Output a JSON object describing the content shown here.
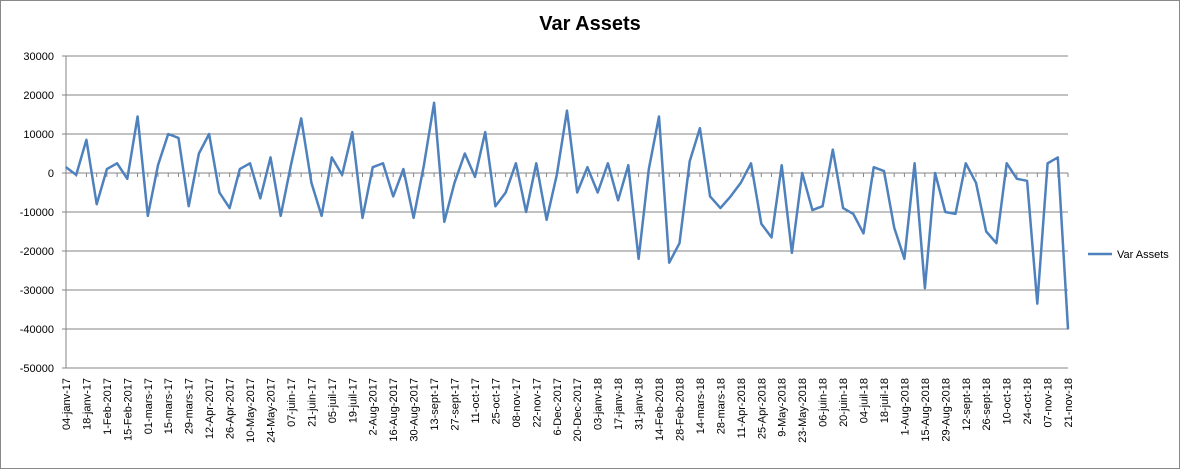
{
  "chart_data": {
    "type": "line",
    "title": "Var Assets",
    "xlabel": "",
    "ylabel": "",
    "ylim": [
      -50000,
      30000
    ],
    "ytick_step": 10000,
    "grid": "horizontal",
    "legend": "right",
    "colors": {
      "series": "#4f81bd",
      "grid": "#868686",
      "axis": "#868686"
    },
    "x_tick_labels": [
      "04-janv-17",
      "18-janv-17",
      "1-Feb-2017",
      "15-Feb-2017",
      "01-mars-17",
      "15-mars-17",
      "29-mars-17",
      "12-Apr-2017",
      "26-Apr-2017",
      "10-May-2017",
      "24-May-2017",
      "07-juin-17",
      "21-juin-17",
      "05-juil-17",
      "19-juil-17",
      "2-Aug-2017",
      "16-Aug-2017",
      "30-Aug-2017",
      "13-sept-17",
      "27-sept-17",
      "11-oct-17",
      "25-oct-17",
      "08-nov-17",
      "22-nov-17",
      "6-Dec-2017",
      "20-Dec-2017",
      "03-janv-18",
      "17-janv-18",
      "31-janv-18",
      "14-Feb-2018",
      "28-Feb-2018",
      "14-mars-18",
      "28-mars-18",
      "11-Apr-2018",
      "25-Apr-2018",
      "9-May-2018",
      "23-May-2018",
      "06-juin-18",
      "20-juin-18",
      "04-juil-18",
      "18-juil-18",
      "1-Aug-2018",
      "15-Aug-2018",
      "29-Aug-2018",
      "12-sept-18",
      "26-sept-18",
      "10-oct-18",
      "24-oct-18",
      "07-nov-18",
      "21-nov-18"
    ],
    "series": [
      {
        "name": "Var Assets",
        "values": [
          1500,
          -500,
          8500,
          -8000,
          1000,
          2500,
          -1500,
          14500,
          -11000,
          2000,
          10000,
          9000,
          -8500,
          5000,
          10000,
          -5000,
          -9000,
          1000,
          2500,
          -6500,
          4000,
          -11000,
          2000,
          14000,
          -2500,
          -11000,
          4000,
          -500,
          10500,
          -11500,
          1500,
          2500,
          -6000,
          1000,
          -11500,
          2000,
          18000,
          -12500,
          -2500,
          5000,
          -1000,
          10500,
          -8500,
          -5000,
          2500,
          -10000,
          2500,
          -12000,
          -500,
          16000,
          -5000,
          1500,
          -5000,
          2500,
          -7000,
          2000,
          -22000,
          1000,
          14500,
          -23000,
          -18000,
          3000,
          11500,
          -6000,
          -9000,
          -6000,
          -2500,
          2500,
          -13000,
          -16500,
          2000,
          -20500,
          0,
          -9500,
          -8500,
          6000,
          -9000,
          -10500,
          -15500,
          1500,
          500,
          -14000,
          -22000,
          2500,
          -29500,
          0,
          -10000,
          -10500,
          2500,
          -2500,
          -15000,
          -18000,
          2500,
          -1500,
          -2000,
          -33500,
          2500,
          4000,
          -40000
        ]
      }
    ],
    "legend_entries": [
      "Var Assets"
    ]
  }
}
